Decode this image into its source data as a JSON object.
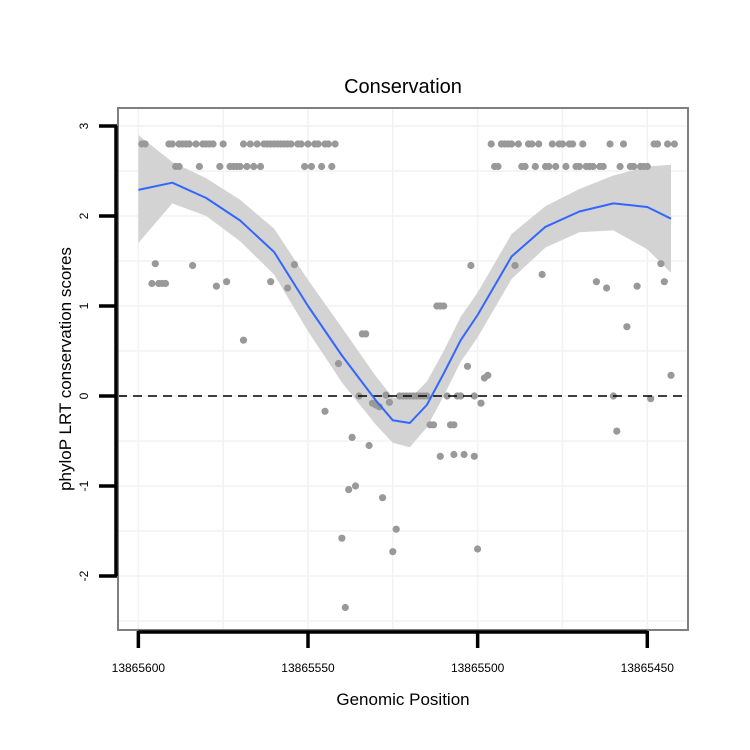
{
  "chart_data": {
    "type": "scatter",
    "title": "Conservation",
    "xlabel": "Genomic Position",
    "ylabel": "phyloP LRT conservation scores",
    "x_reversed": true,
    "xlim": [
      13865606,
      13865438
    ],
    "ylim": [
      -2.6,
      3.2
    ],
    "xticks": [
      13865600,
      13865550,
      13865500,
      13865450
    ],
    "xtick_labels": [
      "13865600",
      "13865550",
      "13865500",
      "13865450"
    ],
    "yticks": [
      -2,
      -1,
      0,
      1,
      2,
      3
    ],
    "ytick_labels": [
      "-2",
      "-1",
      "0",
      "1",
      "2",
      "3"
    ],
    "grid": true,
    "reference_line": {
      "y": 0,
      "style": "dashed"
    },
    "colors": {
      "points": "#999999",
      "smooth": "#3366ff",
      "ribbon": "#d3d3d3",
      "panel_border": "#7f7f7f",
      "grid": "#f2f2f2"
    },
    "points": [
      [
        13865599,
        2.8
      ],
      [
        13865598,
        2.8
      ],
      [
        13865596,
        1.25
      ],
      [
        13865595,
        1.47
      ],
      [
        13865594,
        1.25
      ],
      [
        13865593,
        1.25
      ],
      [
        13865592,
        1.25
      ],
      [
        13865591,
        2.8
      ],
      [
        13865590,
        2.8
      ],
      [
        13865589,
        2.55
      ],
      [
        13865588,
        2.8
      ],
      [
        13865588,
        2.55
      ],
      [
        13865587,
        2.8
      ],
      [
        13865586,
        2.8
      ],
      [
        13865585,
        2.8
      ],
      [
        13865584,
        1.45
      ],
      [
        13865583,
        2.8
      ],
      [
        13865582,
        2.55
      ],
      [
        13865581,
        2.8
      ],
      [
        13865580,
        2.8
      ],
      [
        13865579,
        2.8
      ],
      [
        13865578,
        2.8
      ],
      [
        13865577,
        1.22
      ],
      [
        13865576,
        2.55
      ],
      [
        13865575,
        2.8
      ],
      [
        13865574,
        1.27
      ],
      [
        13865573,
        2.55
      ],
      [
        13865572,
        2.55
      ],
      [
        13865571,
        2.55
      ],
      [
        13865570,
        2.55
      ],
      [
        13865569,
        0.62
      ],
      [
        13865569,
        2.8
      ],
      [
        13865568,
        2.55
      ],
      [
        13865567,
        2.8
      ],
      [
        13865566,
        2.55
      ],
      [
        13865565,
        2.8
      ],
      [
        13865564,
        2.55
      ],
      [
        13865563,
        2.8
      ],
      [
        13865562,
        2.8
      ],
      [
        13865561,
        1.27
      ],
      [
        13865561,
        2.8
      ],
      [
        13865560,
        2.8
      ],
      [
        13865559,
        2.8
      ],
      [
        13865558,
        2.8
      ],
      [
        13865557,
        2.8
      ],
      [
        13865556,
        1.2
      ],
      [
        13865556,
        2.8
      ],
      [
        13865555,
        2.8
      ],
      [
        13865554,
        1.46
      ],
      [
        13865553,
        2.8
      ],
      [
        13865552,
        2.8
      ],
      [
        13865551,
        2.55
      ],
      [
        13865550,
        2.8
      ],
      [
        13865549,
        2.55
      ],
      [
        13865548,
        2.8
      ],
      [
        13865547,
        2.8
      ],
      [
        13865546,
        2.55
      ],
      [
        13865545,
        -0.17
      ],
      [
        13865545,
        2.8
      ],
      [
        13865544,
        2.8
      ],
      [
        13865543,
        2.55
      ],
      [
        13865542,
        2.8
      ],
      [
        13865541,
        0.36
      ],
      [
        13865540,
        -1.58
      ],
      [
        13865539,
        -2.35
      ],
      [
        13865538,
        -1.04
      ],
      [
        13865537,
        -0.46
      ],
      [
        13865536,
        -1.0
      ],
      [
        13865535,
        0.0
      ],
      [
        13865534,
        0.69
      ],
      [
        13865533,
        0.69
      ],
      [
        13865532,
        -0.55
      ],
      [
        13865531,
        -0.08
      ],
      [
        13865530,
        -0.1
      ],
      [
        13865529,
        -0.12
      ],
      [
        13865528,
        -1.13
      ],
      [
        13865527,
        0.01
      ],
      [
        13865526,
        -0.07
      ],
      [
        13865525,
        -1.73
      ],
      [
        13865524,
        -1.48
      ],
      [
        13865523,
        0.0
      ],
      [
        13865522,
        0.0
      ],
      [
        13865521,
        0.0
      ],
      [
        13865520,
        0.0
      ],
      [
        13865519,
        0.0
      ],
      [
        13865518,
        0.0
      ],
      [
        13865517,
        0.0
      ],
      [
        13865516,
        0.0
      ],
      [
        13865515,
        0.0
      ],
      [
        13865514,
        -0.32
      ],
      [
        13865513,
        -0.32
      ],
      [
        13865512,
        1.0
      ],
      [
        13865511,
        -0.67
      ],
      [
        13865511,
        1.0
      ],
      [
        13865510,
        1.0
      ],
      [
        13865509,
        0.0
      ],
      [
        13865508,
        -0.32
      ],
      [
        13865507,
        -0.32
      ],
      [
        13865507,
        -0.65
      ],
      [
        13865506,
        0.0
      ],
      [
        13865505,
        0.0
      ],
      [
        13865504,
        -0.65
      ],
      [
        13865503,
        0.33
      ],
      [
        13865502,
        1.45
      ],
      [
        13865501,
        -0.67
      ],
      [
        13865501,
        0.0
      ],
      [
        13865500,
        -1.7
      ],
      [
        13865499,
        -0.08
      ],
      [
        13865498,
        0.2
      ],
      [
        13865497,
        0.23
      ],
      [
        13865496,
        2.8
      ],
      [
        13865495,
        2.55
      ],
      [
        13865494,
        2.55
      ],
      [
        13865493,
        2.8
      ],
      [
        13865492,
        2.8
      ],
      [
        13865491,
        2.8
      ],
      [
        13865490,
        2.8
      ],
      [
        13865489,
        1.45
      ],
      [
        13865488,
        2.8
      ],
      [
        13865487,
        2.55
      ],
      [
        13865486,
        2.55
      ],
      [
        13865485,
        2.8
      ],
      [
        13865484,
        2.8
      ],
      [
        13865483,
        2.55
      ],
      [
        13865482,
        2.8
      ],
      [
        13865481,
        1.35
      ],
      [
        13865480,
        2.55
      ],
      [
        13865479,
        2.55
      ],
      [
        13865478,
        2.8
      ],
      [
        13865477,
        2.55
      ],
      [
        13865476,
        2.8
      ],
      [
        13865475,
        2.8
      ],
      [
        13865474,
        2.55
      ],
      [
        13865473,
        2.8
      ],
      [
        13865472,
        2.8
      ],
      [
        13865471,
        2.55
      ],
      [
        13865470,
        2.55
      ],
      [
        13865469,
        2.8
      ],
      [
        13865468,
        2.55
      ],
      [
        13865467,
        2.55
      ],
      [
        13865466,
        2.55
      ],
      [
        13865465,
        1.27
      ],
      [
        13865464,
        2.55
      ],
      [
        13865463,
        2.55
      ],
      [
        13865462,
        1.2
      ],
      [
        13865461,
        2.8
      ],
      [
        13865460,
        0.0
      ],
      [
        13865459,
        -0.39
      ],
      [
        13865458,
        2.55
      ],
      [
        13865457,
        2.8
      ],
      [
        13865456,
        0.77
      ],
      [
        13865455,
        2.55
      ],
      [
        13865454,
        2.55
      ],
      [
        13865453,
        1.22
      ],
      [
        13865452,
        2.55
      ],
      [
        13865451,
        2.55
      ],
      [
        13865450,
        2.55
      ],
      [
        13865449,
        -0.03
      ],
      [
        13865448,
        2.8
      ],
      [
        13865447,
        2.8
      ],
      [
        13865446,
        1.47
      ],
      [
        13865445,
        1.27
      ],
      [
        13865444,
        2.8
      ],
      [
        13865443,
        0.23
      ],
      [
        13865442,
        2.8
      ]
    ],
    "smooth": {
      "x": [
        13865600,
        13865590,
        13865580,
        13865570,
        13865560,
        13865550,
        13865540,
        13865530,
        13865525,
        13865520,
        13865515,
        13865510,
        13865505,
        13865500,
        13865490,
        13865480,
        13865470,
        13865460,
        13865450,
        13865443
      ],
      "y": [
        2.29,
        2.37,
        2.2,
        1.95,
        1.6,
        1.0,
        0.45,
        -0.05,
        -0.27,
        -0.3,
        -0.1,
        0.25,
        0.62,
        0.9,
        1.55,
        1.88,
        2.05,
        2.14,
        2.1,
        1.97
      ],
      "lower": [
        1.7,
        2.14,
        2.0,
        1.72,
        1.35,
        0.72,
        0.15,
        -0.32,
        -0.52,
        -0.57,
        -0.35,
        0.0,
        0.38,
        0.65,
        1.3,
        1.65,
        1.82,
        1.84,
        1.63,
        1.37
      ],
      "upper": [
        2.9,
        2.6,
        2.42,
        2.18,
        1.86,
        1.29,
        0.76,
        0.22,
        -0.02,
        -0.03,
        0.16,
        0.5,
        0.88,
        1.15,
        1.8,
        2.11,
        2.3,
        2.45,
        2.55,
        2.57
      ]
    }
  }
}
